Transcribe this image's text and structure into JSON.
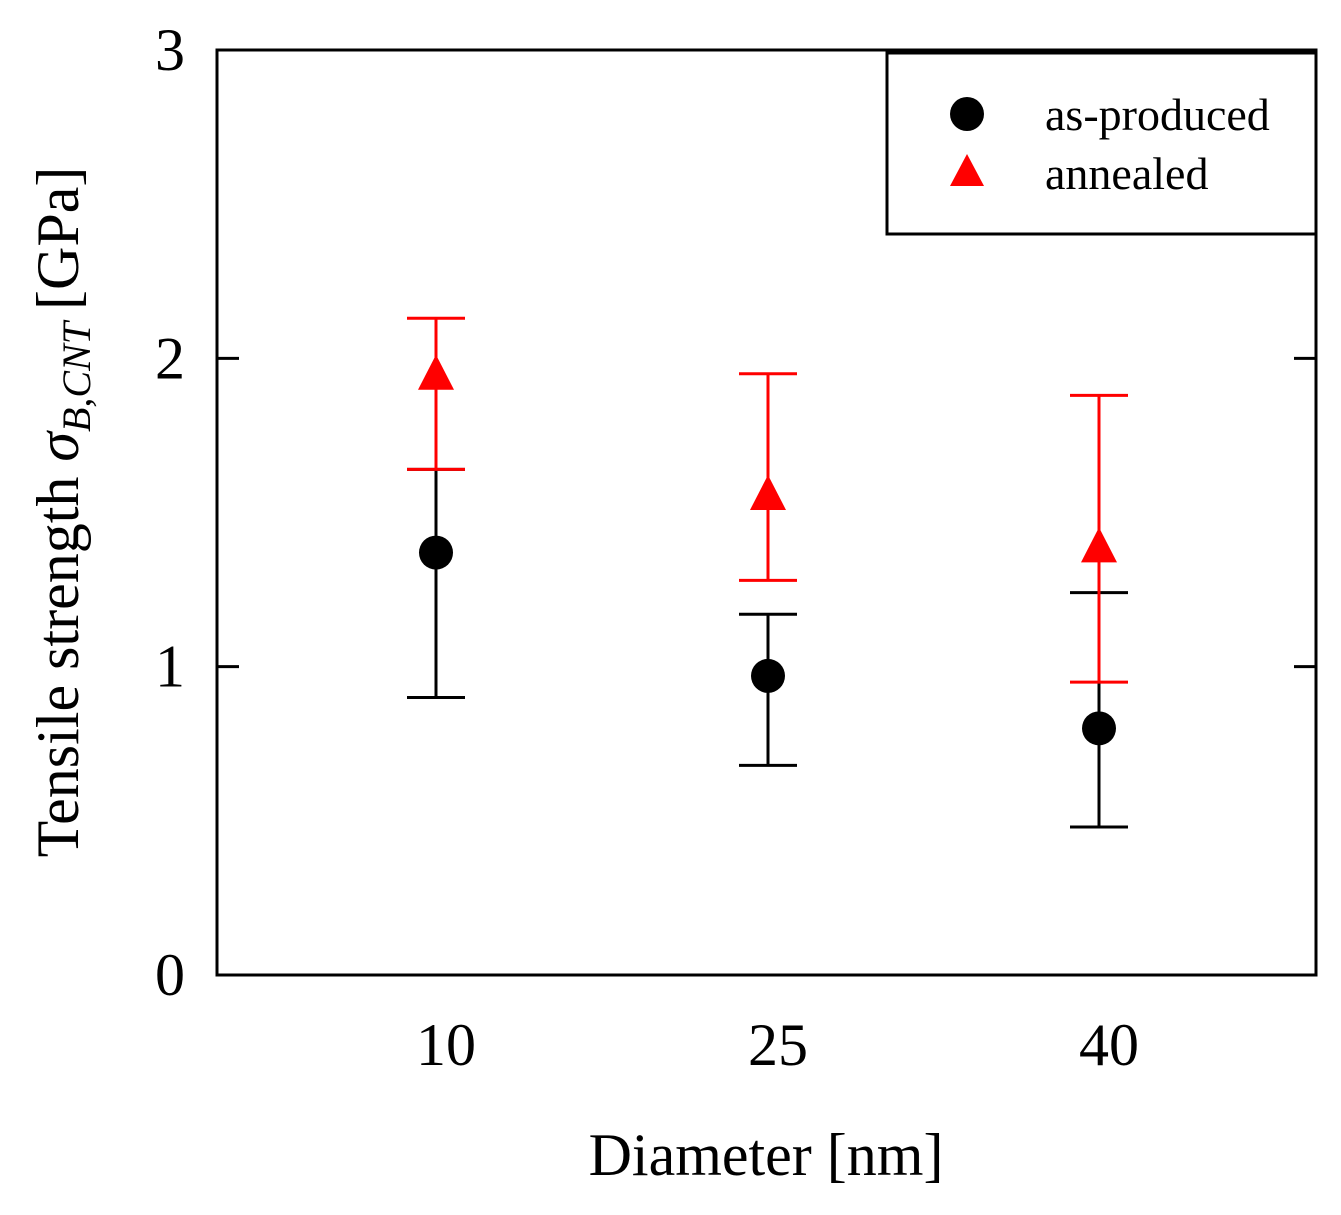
{
  "chart_data": {
    "type": "scatter",
    "xlabel": "Diameter [nm]",
    "ylabel_main": "Tensile strength",
    "ylabel_symbol": "σ",
    "ylabel_subscript": "B,CNT",
    "ylabel_unit": "[GPa]",
    "categories": [
      "10",
      "25",
      "40"
    ],
    "ylim": [
      0,
      3
    ],
    "yticks": [
      0,
      1,
      2,
      3
    ],
    "grid": false,
    "legend_position": "top-right",
    "series": [
      {
        "name": "as-produced",
        "marker": "circle",
        "color": "#000000",
        "values": [
          1.37,
          0.97,
          0.8
        ],
        "err_low": [
          0.9,
          0.68,
          0.48
        ],
        "err_high": [
          1.64,
          1.17,
          1.24
        ]
      },
      {
        "name": "annealed",
        "marker": "triangle",
        "color": "#ff0000",
        "values": [
          1.95,
          1.56,
          1.39
        ],
        "err_low": [
          1.64,
          1.28,
          0.95
        ],
        "err_high": [
          2.13,
          1.95,
          1.88
        ]
      }
    ]
  }
}
